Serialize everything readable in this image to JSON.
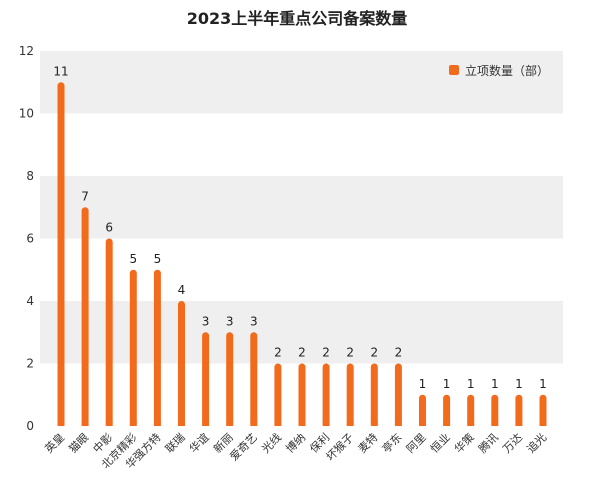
{
  "chart_data": {
    "type": "bar",
    "title": "2023上半年重点公司备案数量",
    "categories": [
      "英皇",
      "猫眼",
      "中影",
      "北京精彩",
      "华强方特",
      "联瑞",
      "华谊",
      "新丽",
      "爱奇艺",
      "光线",
      "博纳",
      "保利",
      "坏猴子",
      "麦特",
      "亭东",
      "阿里",
      "恒业",
      "华策",
      "腾讯",
      "万达",
      "追光"
    ],
    "series": [
      {
        "name": "立项数量（部）",
        "values": [
          11,
          7,
          6,
          5,
          5,
          4,
          3,
          3,
          3,
          2,
          2,
          2,
          2,
          2,
          2,
          1,
          1,
          1,
          1,
          1,
          1
        ]
      }
    ],
    "ylim": [
      0,
      12
    ],
    "yticks": [
      0,
      2,
      4,
      6,
      8,
      10,
      12
    ],
    "grid": "alternating horizontal bands",
    "legend": "top-right",
    "bar_color": "#f26b1d",
    "band_color": "#efefef"
  }
}
